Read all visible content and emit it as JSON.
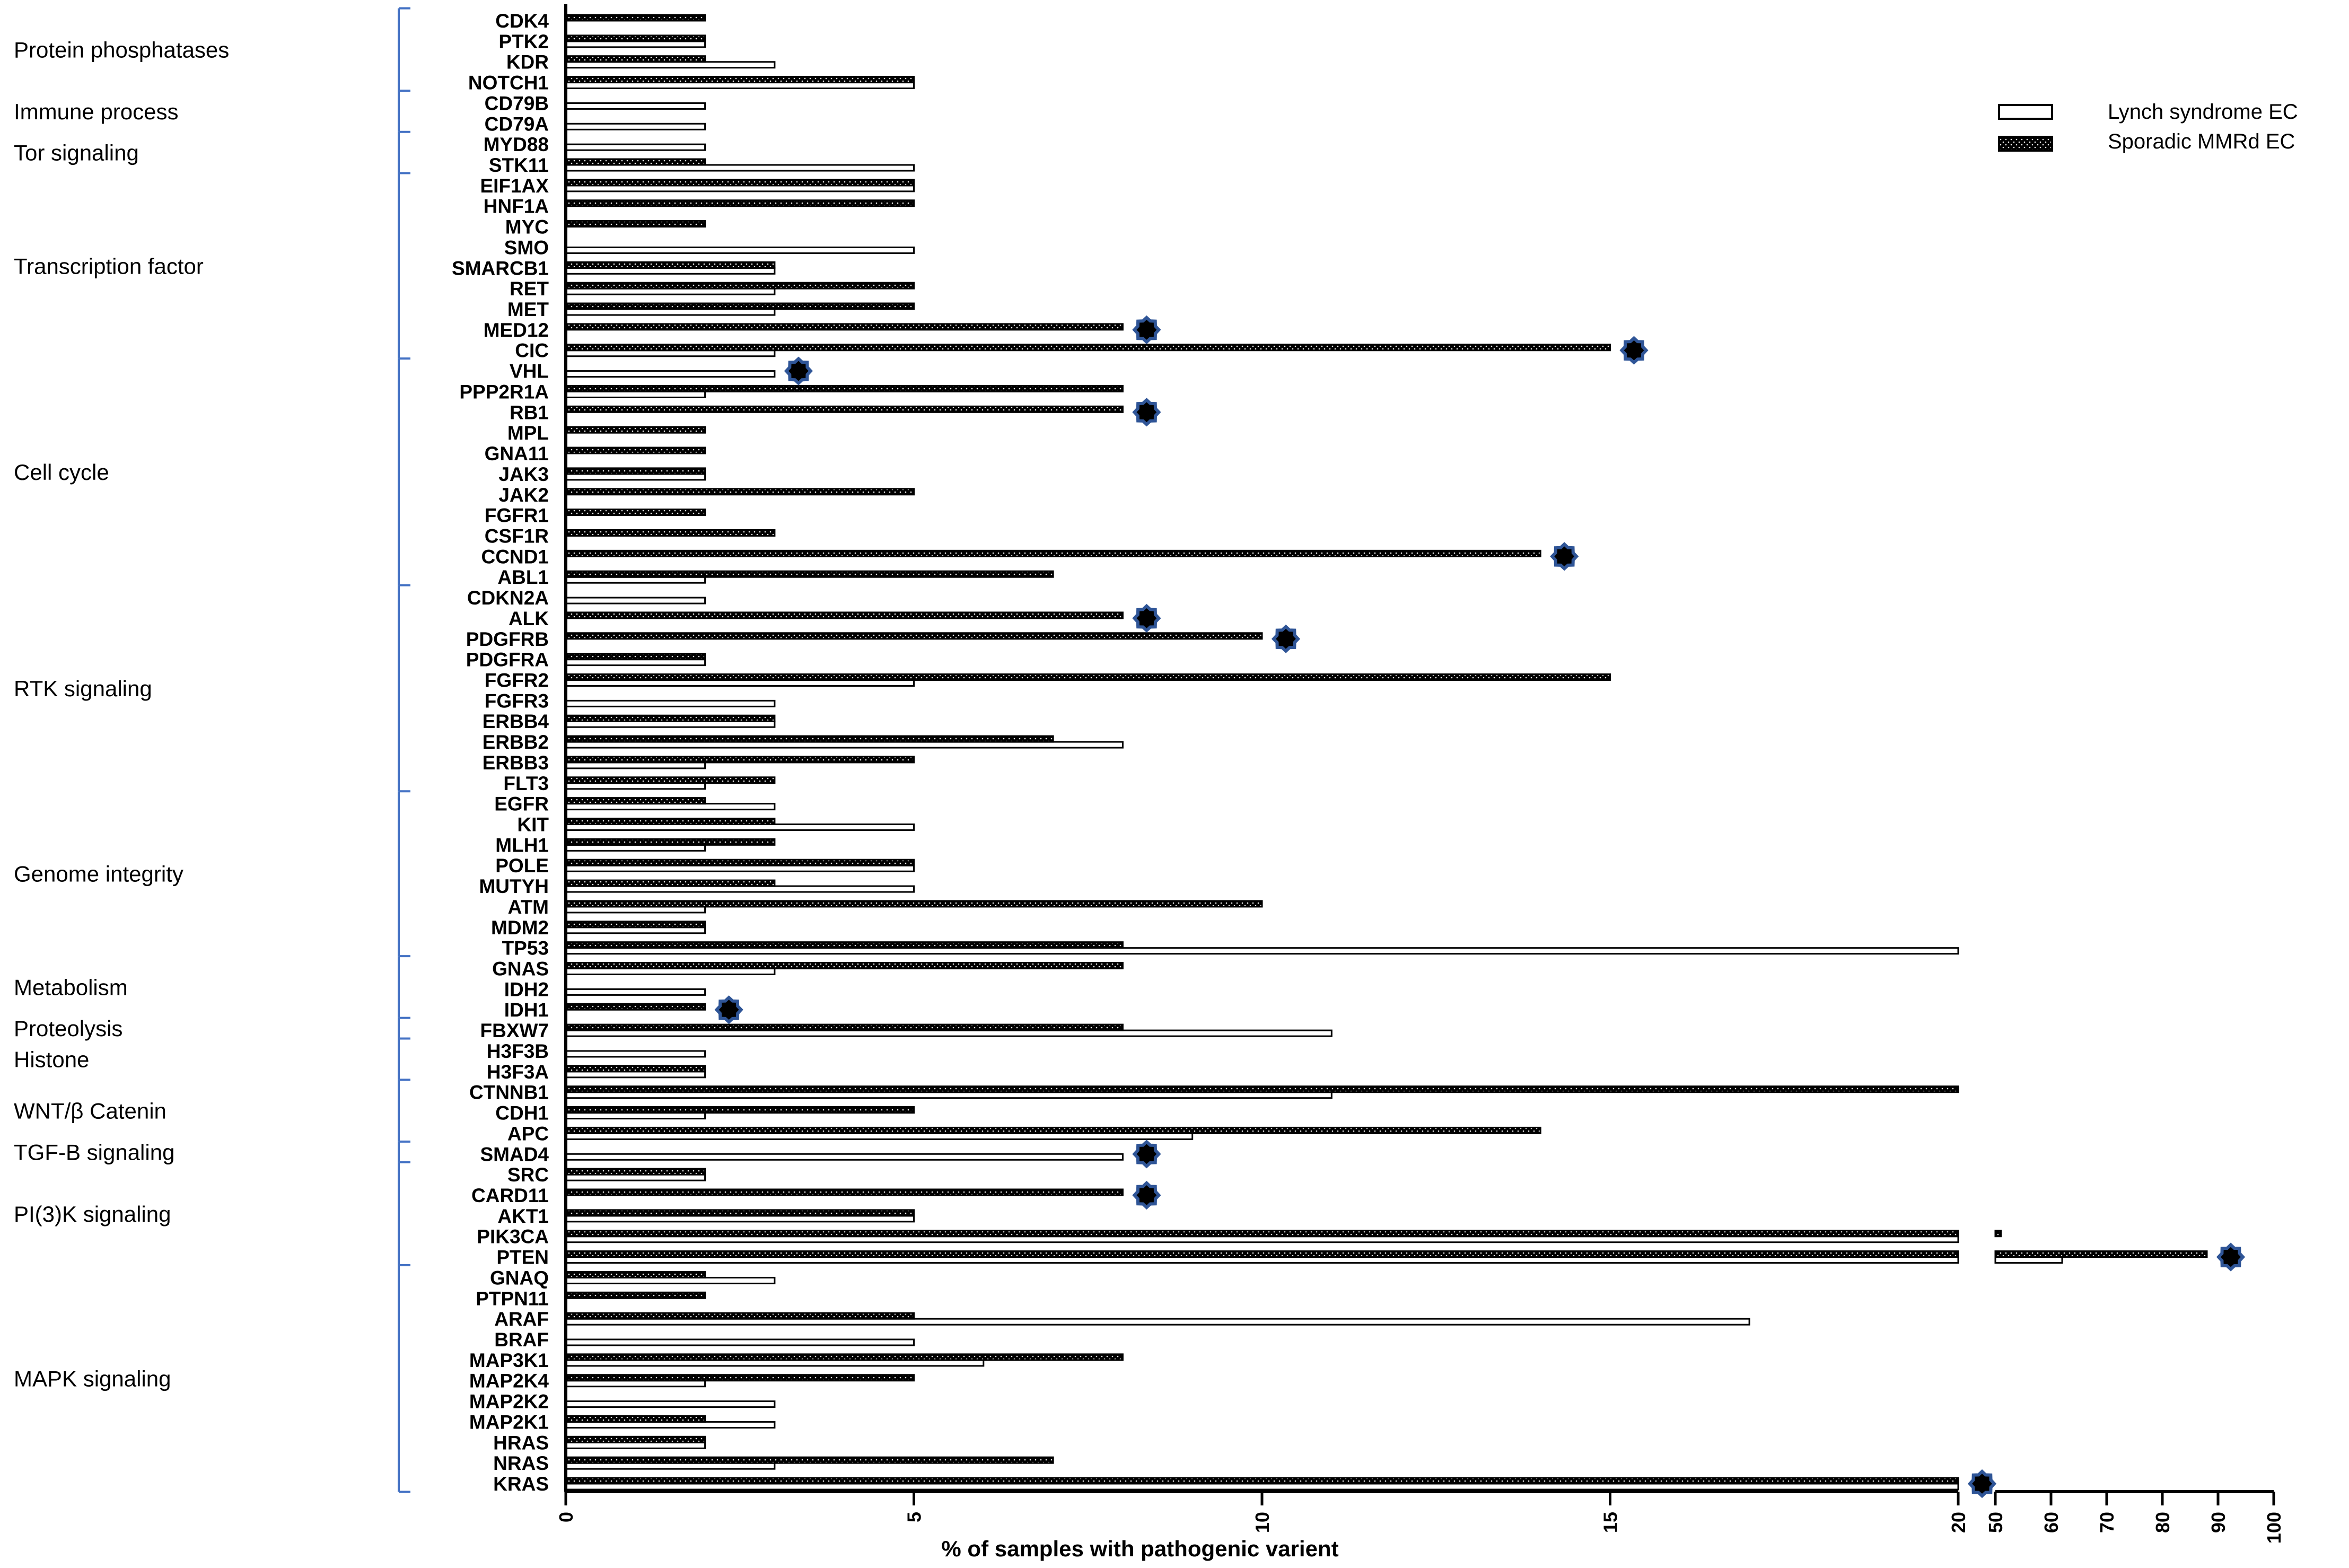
{
  "chart_data": {
    "type": "bar",
    "orientation": "horizontal",
    "title": "",
    "xlabel": "% of samples with pathogenic varient",
    "ylabel": "",
    "xaxis": {
      "segment1": {
        "range": [
          0,
          20
        ],
        "ticks": [
          "0",
          "5",
          "10",
          "15",
          "20"
        ]
      },
      "segment2": {
        "range": [
          50,
          100
        ],
        "ticks": [
          "50",
          "60",
          "70",
          "80",
          "90",
          "100"
        ]
      }
    },
    "legend": {
      "position": "top-right",
      "entries": [
        {
          "name": "Lynch syndrome EC",
          "pattern": "white"
        },
        {
          "name": "Sporadic MMRd EC",
          "pattern": "black-dotted"
        }
      ]
    },
    "series_names": [
      "Lynch syndrome EC",
      "Sporadic MMRd EC"
    ],
    "groups": [
      {
        "label": "Protein phosphatases",
        "first": "CDK4",
        "last": "NOTCH1"
      },
      {
        "label": "Immune process",
        "first": "CD79B",
        "last": "CD79A"
      },
      {
        "label": "Tor signaling",
        "first": "MYD88",
        "last": "STK11"
      },
      {
        "label": "Transcription factor",
        "first": "EIF1AX",
        "last": "CIC"
      },
      {
        "label": "Cell cycle",
        "first": "VHL",
        "last": "ABL1"
      },
      {
        "label": "RTK signaling",
        "first": "CDKN2A",
        "last": "FLT3"
      },
      {
        "label": "Genome integrity",
        "first": "EGFR",
        "last": "TP53"
      },
      {
        "label": "Metabolism",
        "first": "GNAS",
        "last": "IDH1"
      },
      {
        "label": "Proteolysis",
        "first": "FBXW7",
        "last": "FBXW7"
      },
      {
        "label": "Histone",
        "first": "H3F3B",
        "last": "H3F3A"
      },
      {
        "label": "WNT/β Catenin",
        "first": "CTNNB1",
        "last": "APC"
      },
      {
        "label": "TGF-B signaling",
        "first": "SMAD4",
        "last": "SMAD4"
      },
      {
        "label": "PI(3)K signaling",
        "first": "SRC",
        "last": "PTEN"
      },
      {
        "label": "MAPK signaling",
        "first": "GNAQ",
        "last": "KRAS"
      }
    ],
    "genes": [
      {
        "gene": "CDK4",
        "lynch": 0,
        "sporadic": 2
      },
      {
        "gene": "PTK2",
        "lynch": 2,
        "sporadic": 2
      },
      {
        "gene": "KDR",
        "lynch": 3,
        "sporadic": 2
      },
      {
        "gene": "NOTCH1",
        "lynch": 5,
        "sporadic": 5
      },
      {
        "gene": "CD79B",
        "lynch": 2,
        "sporadic": 0
      },
      {
        "gene": "CD79A",
        "lynch": 2,
        "sporadic": 0
      },
      {
        "gene": "MYD88",
        "lynch": 2,
        "sporadic": 0
      },
      {
        "gene": "STK11",
        "lynch": 5,
        "sporadic": 2
      },
      {
        "gene": "EIF1AX",
        "lynch": 5,
        "sporadic": 5
      },
      {
        "gene": "HNF1A",
        "lynch": 0,
        "sporadic": 5
      },
      {
        "gene": "MYC",
        "lynch": 0,
        "sporadic": 2
      },
      {
        "gene": "SMO",
        "lynch": 5,
        "sporadic": 0
      },
      {
        "gene": "SMARCB1",
        "lynch": 3,
        "sporadic": 3
      },
      {
        "gene": "RET",
        "lynch": 3,
        "sporadic": 5
      },
      {
        "gene": "MET",
        "lynch": 3,
        "sporadic": 5
      },
      {
        "gene": "MED12",
        "lynch": 0,
        "sporadic": 8,
        "significant": true
      },
      {
        "gene": "CIC",
        "lynch": 3,
        "sporadic": 15,
        "significant": true
      },
      {
        "gene": "VHL",
        "lynch": 3,
        "sporadic": 0,
        "significant": true
      },
      {
        "gene": "PPP2R1A",
        "lynch": 2,
        "sporadic": 8
      },
      {
        "gene": "RB1",
        "lynch": 0,
        "sporadic": 8,
        "significant": true
      },
      {
        "gene": "MPL",
        "lynch": 0,
        "sporadic": 2
      },
      {
        "gene": "GNA11",
        "lynch": 0,
        "sporadic": 2
      },
      {
        "gene": "JAK3",
        "lynch": 2,
        "sporadic": 2
      },
      {
        "gene": "JAK2",
        "lynch": 0,
        "sporadic": 5
      },
      {
        "gene": "FGFR1",
        "lynch": 0,
        "sporadic": 2
      },
      {
        "gene": "CSF1R",
        "lynch": 0,
        "sporadic": 3
      },
      {
        "gene": "CCND1",
        "lynch": 0,
        "sporadic": 14,
        "significant": true
      },
      {
        "gene": "ABL1",
        "lynch": 2,
        "sporadic": 7
      },
      {
        "gene": "CDKN2A",
        "lynch": 2,
        "sporadic": 0
      },
      {
        "gene": "ALK",
        "lynch": 0,
        "sporadic": 8,
        "significant": true
      },
      {
        "gene": "PDGFRB",
        "lynch": 0,
        "sporadic": 10,
        "significant": true
      },
      {
        "gene": "PDGFRA",
        "lynch": 2,
        "sporadic": 2
      },
      {
        "gene": "FGFR2",
        "lynch": 5,
        "sporadic": 15
      },
      {
        "gene": "FGFR3",
        "lynch": 3,
        "sporadic": 0
      },
      {
        "gene": "ERBB4",
        "lynch": 3,
        "sporadic": 3
      },
      {
        "gene": "ERBB2",
        "lynch": 8,
        "sporadic": 7
      },
      {
        "gene": "ERBB3",
        "lynch": 2,
        "sporadic": 5
      },
      {
        "gene": "FLT3",
        "lynch": 2,
        "sporadic": 3
      },
      {
        "gene": "EGFR",
        "lynch": 3,
        "sporadic": 2
      },
      {
        "gene": "KIT",
        "lynch": 5,
        "sporadic": 3
      },
      {
        "gene": "MLH1",
        "lynch": 2,
        "sporadic": 3
      },
      {
        "gene": "POLE",
        "lynch": 5,
        "sporadic": 5
      },
      {
        "gene": "MUTYH",
        "lynch": 5,
        "sporadic": 3
      },
      {
        "gene": "ATM",
        "lynch": 2,
        "sporadic": 10
      },
      {
        "gene": "MDM2",
        "lynch": 2,
        "sporadic": 2
      },
      {
        "gene": "TP53",
        "lynch": 20,
        "sporadic": 8
      },
      {
        "gene": "GNAS",
        "lynch": 3,
        "sporadic": 8
      },
      {
        "gene": "IDH2",
        "lynch": 2,
        "sporadic": 0
      },
      {
        "gene": "IDH1",
        "lynch": 0,
        "sporadic": 2,
        "significant": true
      },
      {
        "gene": "FBXW7",
        "lynch": 11,
        "sporadic": 8
      },
      {
        "gene": "H3F3B",
        "lynch": 2,
        "sporadic": 0
      },
      {
        "gene": "H3F3A",
        "lynch": 2,
        "sporadic": 2
      },
      {
        "gene": "CTNNB1",
        "lynch": 11,
        "sporadic": 20
      },
      {
        "gene": "CDH1",
        "lynch": 2,
        "sporadic": 5
      },
      {
        "gene": "APC",
        "lynch": 9,
        "sporadic": 14
      },
      {
        "gene": "SMAD4",
        "lynch": 8,
        "sporadic": 0,
        "significant": true
      },
      {
        "gene": "SRC",
        "lynch": 2,
        "sporadic": 2
      },
      {
        "gene": "CARD11",
        "lynch": 0,
        "sporadic": 8,
        "significant": true
      },
      {
        "gene": "AKT1",
        "lynch": 5,
        "sporadic": 5
      },
      {
        "gene": "PIK3CA",
        "lynch": 20,
        "sporadic": 51
      },
      {
        "gene": "PTEN",
        "lynch": 62,
        "sporadic": 88,
        "significant": true
      },
      {
        "gene": "GNAQ",
        "lynch": 3,
        "sporadic": 2
      },
      {
        "gene": "PTPN11",
        "lynch": 0,
        "sporadic": 2
      },
      {
        "gene": "ARAF",
        "lynch": 17,
        "sporadic": 5
      },
      {
        "gene": "BRAF",
        "lynch": 5,
        "sporadic": 0
      },
      {
        "gene": "MAP3K1",
        "lynch": 6,
        "sporadic": 8
      },
      {
        "gene": "MAP2K4",
        "lynch": 2,
        "sporadic": 5
      },
      {
        "gene": "MAP2K2",
        "lynch": 3,
        "sporadic": 0
      },
      {
        "gene": "MAP2K1",
        "lynch": 3,
        "sporadic": 2
      },
      {
        "gene": "HRAS",
        "lynch": 2,
        "sporadic": 2
      },
      {
        "gene": "NRAS",
        "lynch": 3,
        "sporadic": 7
      },
      {
        "gene": "KRAS",
        "lynch": 20,
        "sporadic": 20,
        "significant": true
      }
    ]
  }
}
